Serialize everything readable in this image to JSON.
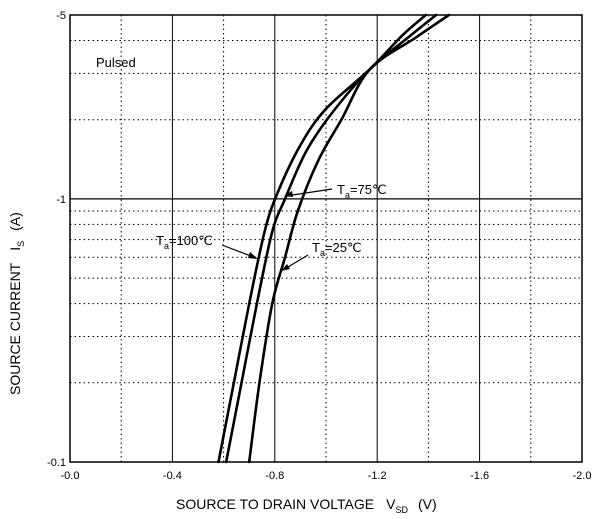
{
  "chart_data": {
    "type": "line",
    "xlabel": "SOURCE TO DRAIN VOLTAGE",
    "xlabel_symbol": "V",
    "xlabel_symbol_sub": "SD",
    "xlabel_unit": "(V)",
    "ylabel": "SOURCE CURRENT",
    "ylabel_symbol": "I",
    "ylabel_symbol_sub": "S",
    "ylabel_unit": "(A)",
    "x_ticks": [
      "-0.0",
      "-0.4",
      "-0.8",
      "-1.2",
      "-1.6",
      "-2.0"
    ],
    "y_ticks": [
      "-0.1",
      "-1",
      "-5"
    ],
    "xlim": [
      0,
      -2.0
    ],
    "ylim": [
      -0.1,
      -5
    ],
    "y_scale": "log",
    "grid": true,
    "note": "Pulsed",
    "series": [
      {
        "name": "Ta=100℃",
        "label_main": "T",
        "label_sub": "a",
        "label_rest": "=100℃",
        "points": [
          [
            -0.58,
            -0.1
          ],
          [
            -0.64,
            -0.2
          ],
          [
            -0.7,
            -0.4
          ],
          [
            -0.76,
            -0.75
          ],
          [
            -0.81,
            -1.05
          ],
          [
            -0.9,
            -1.6
          ],
          [
            -1.0,
            -2.2
          ],
          [
            -1.17,
            -3.1
          ],
          [
            -1.3,
            -4.2
          ],
          [
            -1.39,
            -5.0
          ]
        ]
      },
      {
        "name": "Ta=75℃",
        "label_main": "T",
        "label_sub": "a",
        "label_rest": "=75℃",
        "points": [
          [
            -0.61,
            -0.1
          ],
          [
            -0.67,
            -0.2
          ],
          [
            -0.73,
            -0.4
          ],
          [
            -0.79,
            -0.75
          ],
          [
            -0.84,
            -1.0
          ],
          [
            -0.92,
            -1.5
          ],
          [
            -1.02,
            -2.1
          ],
          [
            -1.17,
            -3.1
          ],
          [
            -1.32,
            -4.1
          ],
          [
            -1.43,
            -5.0
          ]
        ]
      },
      {
        "name": "Ta=25℃",
        "label_main": "T",
        "label_sub": "a",
        "label_rest": "=25℃",
        "points": [
          [
            -0.7,
            -0.1
          ],
          [
            -0.74,
            -0.2
          ],
          [
            -0.79,
            -0.4
          ],
          [
            -0.84,
            -0.6
          ],
          [
            -0.89,
            -0.9
          ],
          [
            -0.97,
            -1.4
          ],
          [
            -1.06,
            -2.0
          ],
          [
            -1.17,
            -3.1
          ],
          [
            -1.35,
            -4.1
          ],
          [
            -1.48,
            -5.0
          ]
        ]
      }
    ]
  }
}
